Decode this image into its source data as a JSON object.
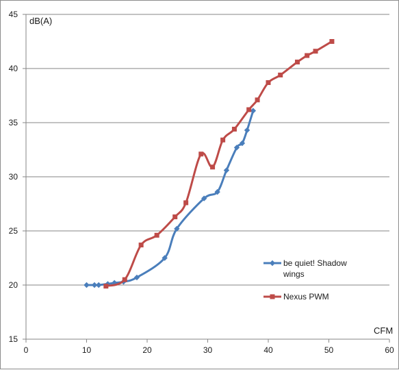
{
  "chart_data": {
    "type": "line",
    "title": "",
    "xlabel": "CFM",
    "ylabel": "dB(A)",
    "xlim": [
      0,
      60
    ],
    "ylim": [
      15,
      45
    ],
    "xticks": [
      0,
      10,
      20,
      30,
      40,
      50,
      60
    ],
    "yticks": [
      15,
      20,
      25,
      30,
      35,
      40,
      45
    ],
    "grid": "horizontal",
    "legend_position": "right",
    "series": [
      {
        "name": "be quiet! Shadow wings",
        "color": "#4a7ebb",
        "marker": "diamond",
        "points": [
          [
            10.0,
            20.0
          ],
          [
            11.3,
            20.0
          ],
          [
            12.0,
            20.0
          ],
          [
            13.5,
            20.1
          ],
          [
            14.6,
            20.2
          ],
          [
            16.1,
            20.3
          ],
          [
            18.3,
            20.7
          ],
          [
            22.9,
            22.5
          ],
          [
            24.9,
            25.2
          ],
          [
            29.4,
            28.0
          ],
          [
            31.6,
            28.6
          ],
          [
            33.1,
            30.6
          ],
          [
            34.8,
            32.7
          ],
          [
            35.7,
            33.1
          ],
          [
            36.5,
            34.3
          ],
          [
            37.5,
            36.1
          ]
        ]
      },
      {
        "name": "Nexus PWM",
        "color": "#be4b48",
        "marker": "square",
        "points": [
          [
            13.2,
            19.9
          ],
          [
            16.3,
            20.5
          ],
          [
            19.0,
            23.7
          ],
          [
            21.6,
            24.6
          ],
          [
            24.6,
            26.3
          ],
          [
            26.4,
            27.6
          ],
          [
            28.9,
            32.1
          ],
          [
            30.8,
            30.9
          ],
          [
            32.5,
            33.4
          ],
          [
            34.4,
            34.4
          ],
          [
            36.8,
            36.2
          ],
          [
            38.2,
            37.1
          ],
          [
            40.0,
            38.7
          ],
          [
            42.0,
            39.4
          ],
          [
            44.8,
            40.6
          ],
          [
            46.4,
            41.2
          ],
          [
            47.8,
            41.6
          ],
          [
            50.5,
            42.5
          ]
        ]
      }
    ]
  }
}
